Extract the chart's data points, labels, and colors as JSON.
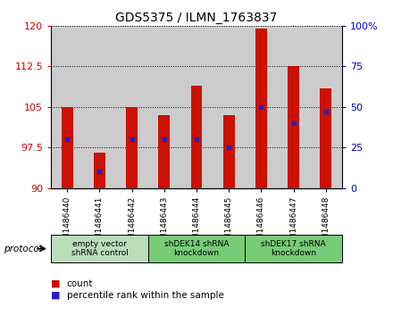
{
  "title": "GDS5375 / ILMN_1763837",
  "samples": [
    "GSM1486440",
    "GSM1486441",
    "GSM1486442",
    "GSM1486443",
    "GSM1486444",
    "GSM1486445",
    "GSM1486446",
    "GSM1486447",
    "GSM1486448"
  ],
  "counts": [
    105.0,
    96.5,
    105.0,
    103.5,
    109.0,
    103.5,
    119.5,
    112.5,
    108.5
  ],
  "percentiles": [
    30,
    10,
    30,
    30,
    30,
    25,
    50,
    40,
    47
  ],
  "ylim_left": [
    90,
    120
  ],
  "ylim_right": [
    0,
    100
  ],
  "yticks_left": [
    90,
    97.5,
    105,
    112.5,
    120
  ],
  "yticks_right": [
    0,
    25,
    50,
    75,
    100
  ],
  "bar_color": "#CC1100",
  "percentile_color": "#2222BB",
  "protocol_groups": [
    {
      "label": "empty vector\nshRNA control",
      "start": 0,
      "end": 3,
      "color": "#BBDDBB"
    },
    {
      "label": "shDEK14 shRNA\nknockdown",
      "start": 3,
      "end": 6,
      "color": "#77CC77"
    },
    {
      "label": "shDEK17 shRNA\nknockdown",
      "start": 6,
      "end": 9,
      "color": "#77CC77"
    }
  ],
  "legend_items": [
    {
      "color": "#CC1100",
      "label": "count"
    },
    {
      "color": "#2222BB",
      "label": "percentile rank within the sample"
    }
  ],
  "bar_width": 0.35,
  "base_value": 90,
  "col_bg_color": "#CCCCCC"
}
